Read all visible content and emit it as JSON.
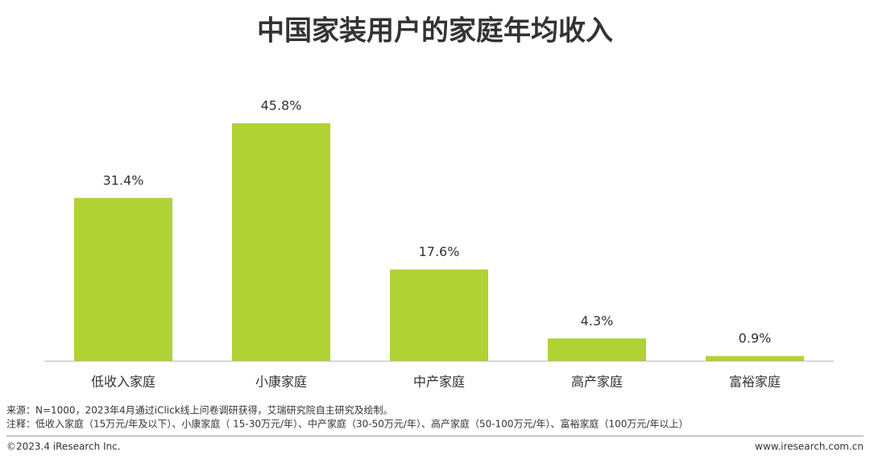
{
  "chart_data": {
    "type": "bar",
    "title": "中国家装用户的家庭年均收入",
    "categories": [
      "低收入家庭",
      "小康家庭",
      "中产家庭",
      "高产家庭",
      "富裕家庭"
    ],
    "values": [
      31.4,
      45.8,
      17.6,
      4.3,
      0.9
    ],
    "value_labels": [
      "31.4%",
      "45.8%",
      "17.6%",
      "4.3%",
      "0.9%"
    ],
    "color": "#b0d235"
  },
  "footer": {
    "source": "来源：N=1000，2023年4月通过iClick线上问卷调研获得，艾瑞研究院自主研究及绘制。",
    "note": "注释：低收入家庭（15万元/年及以下）、小康家庭（ 15-30万元/年）、中产家庭（30-50万元/年）、高产家庭（50-100万元/年）、富裕家庭（100万元/年以上）",
    "copyright": "©2023.4 iResearch Inc.",
    "website": "www.iresearch.com.cn"
  }
}
